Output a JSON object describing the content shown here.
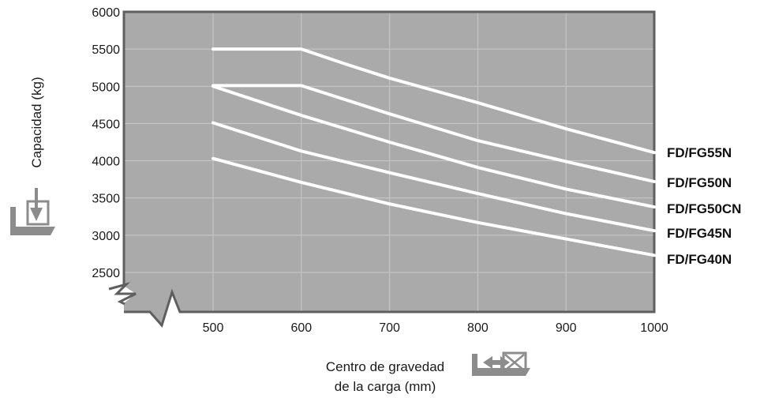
{
  "chart_data": {
    "type": "line",
    "title": "",
    "xlabel": [
      "Centro de gravedad",
      "de la carga (mm)"
    ],
    "ylabel": "Capacidad (kg)",
    "xlim": [
      500,
      1000
    ],
    "ylim": [
      2500,
      6000
    ],
    "x_ticks": [
      500,
      600,
      700,
      800,
      900,
      1000
    ],
    "y_ticks": [
      2500,
      3000,
      3500,
      4000,
      4500,
      5000,
      5500,
      6000
    ],
    "x_tick_labels": [
      "500",
      "600",
      "700",
      "800",
      "900",
      "1000"
    ],
    "y_tick_labels": [
      "2500",
      "3000",
      "3500",
      "4000",
      "4500",
      "5000",
      "5500",
      "6000"
    ],
    "axis_break": true,
    "grid": true,
    "legend": "right",
    "series": [
      {
        "name": "FD/FG55N",
        "x": [
          500,
          600,
          650,
          700,
          800,
          900,
          1000
        ],
        "y": [
          5500,
          5500,
          5300,
          5110,
          4780,
          4430,
          4110
        ]
      },
      {
        "name": "FD/FG50N",
        "x": [
          500,
          600,
          700,
          800,
          900,
          1000
        ],
        "y": [
          5010,
          5010,
          4630,
          4270,
          3990,
          3720
        ]
      },
      {
        "name": "FD/FG50CN",
        "x": [
          500,
          600,
          700,
          800,
          900,
          1000
        ],
        "y": [
          5000,
          4610,
          4250,
          3910,
          3620,
          3380
        ]
      },
      {
        "name": "FD/FG45N",
        "x": [
          500,
          600,
          700,
          800,
          900,
          1000
        ],
        "y": [
          4510,
          4130,
          3840,
          3560,
          3290,
          3060
        ]
      },
      {
        "name": "FD/FG40N",
        "x": [
          500,
          600,
          700,
          800,
          900,
          1000
        ],
        "y": [
          4030,
          3710,
          3420,
          3170,
          2950,
          2730
        ]
      }
    ],
    "colors": {
      "plot_bg": "#aaaaaa",
      "frame": "#5f5f5f",
      "grid": "#c9c9c9",
      "lines": "#ffffff",
      "icons": "#8c8c8c"
    }
  },
  "icons": {
    "y_icon": "load-capacity-icon",
    "x_icon": "load-center-icon"
  }
}
